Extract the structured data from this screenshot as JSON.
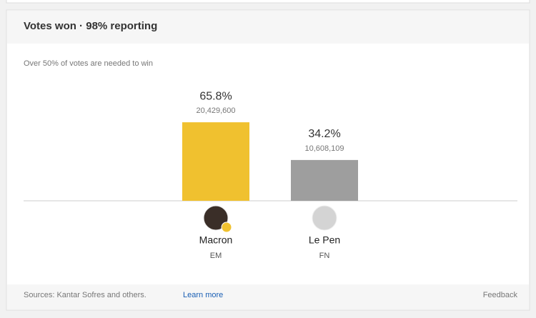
{
  "header": {
    "title": "Votes won · 98% reporting"
  },
  "note": "Over 50% of votes are needed to win",
  "chart_data": {
    "type": "bar",
    "categories": [
      "Macron",
      "Le Pen"
    ],
    "parties": [
      "EM",
      "FN"
    ],
    "values": [
      65.8,
      34.2
    ],
    "value_labels": [
      "65.8%",
      "34.2%"
    ],
    "vote_labels": [
      "20,429,600",
      "10,608,109"
    ],
    "colors": [
      "#f0c12f",
      "#9e9e9e"
    ]
  },
  "footer": {
    "sources": "Sources: Kantar Sofres and others.",
    "link": "Learn more",
    "feedback": "Feedback"
  }
}
